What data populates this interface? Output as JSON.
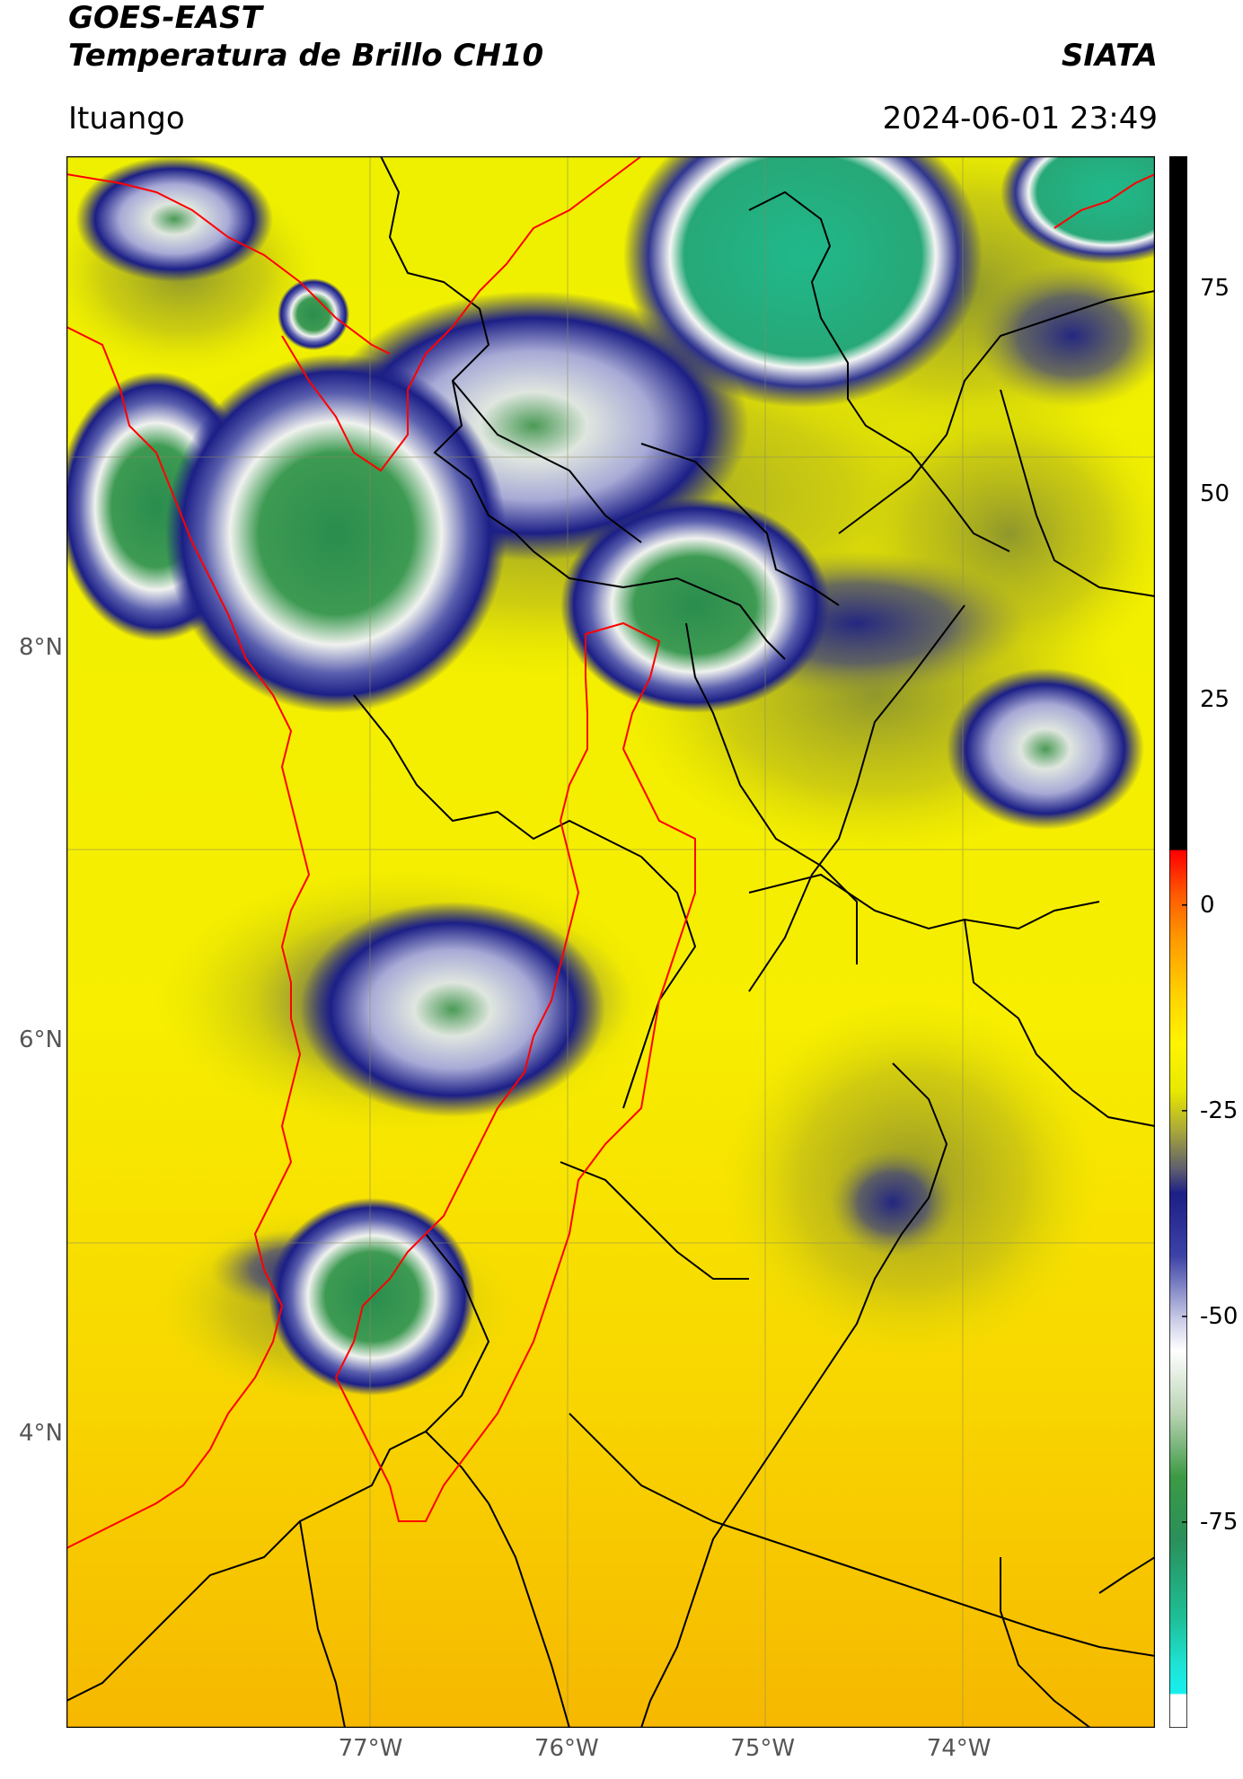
{
  "header": {
    "satellite": "GOES-EAST",
    "product": "Temperatura de Brillo CH10",
    "brand": "SIATA",
    "region": "Ituango",
    "timestamp": "2024-06-01 23:49"
  },
  "map": {
    "lon_range": [
      -78.55,
      -73.0
    ],
    "lat_range": [
      2.5,
      10.5
    ],
    "lon_ticks": [
      {
        "value": -77,
        "label": "77°W"
      },
      {
        "value": -76,
        "label": "76°W"
      },
      {
        "value": -75,
        "label": "75°W"
      },
      {
        "value": -74,
        "label": "74°W"
      }
    ],
    "lat_ticks": [
      {
        "value": 4,
        "label": "4°N"
      },
      {
        "value": 6,
        "label": "6°N"
      },
      {
        "value": 8,
        "label": "8°N"
      }
    ],
    "colors": {
      "background_warm": "#f5ef00",
      "background_south": "#f6bd00",
      "cold_blue": "#1c1f86",
      "cold_white": "#f2f2f8",
      "cold_green": "#2f8f45",
      "cold_cyan_green": "#22b88c",
      "border_black": "#000000",
      "border_red": "#ff0000"
    }
  },
  "colorbar": {
    "range": [
      -100,
      91
    ],
    "ticks": [
      {
        "value": 75,
        "label": "75"
      },
      {
        "value": 50,
        "label": "50"
      },
      {
        "value": 25,
        "label": "25"
      },
      {
        "value": 0,
        "label": "0"
      },
      {
        "value": -25,
        "label": "-25"
      },
      {
        "value": -50,
        "label": "-50"
      },
      {
        "value": -75,
        "label": "-75"
      }
    ]
  }
}
